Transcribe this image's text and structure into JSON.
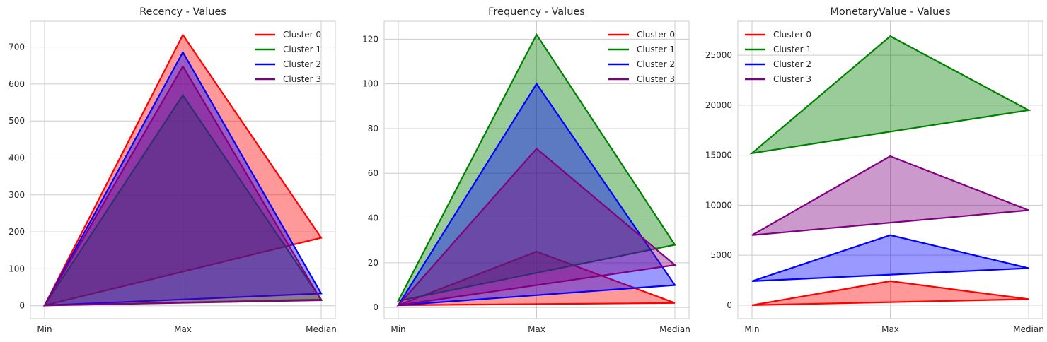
{
  "chart_data": [
    {
      "type": "area",
      "title": "Recency - Values",
      "categories": [
        "Min",
        "Max",
        "Median"
      ],
      "ylim": [
        -35,
        770
      ],
      "yticks": [
        "0",
        "100",
        "200",
        "300",
        "400",
        "500",
        "600",
        "700"
      ],
      "grid": true,
      "legend_position": "top-right",
      "series": [
        {
          "name": "Cluster 0",
          "color": "#ff0000",
          "values": [
            1,
            733,
            184
          ]
        },
        {
          "name": "Cluster 1",
          "color": "#008000",
          "values": [
            1,
            570,
            17
          ]
        },
        {
          "name": "Cluster 2",
          "color": "#0000ff",
          "values": [
            1,
            686,
            33
          ]
        },
        {
          "name": "Cluster 3",
          "color": "#800080",
          "values": [
            1,
            648,
            15
          ]
        }
      ]
    },
    {
      "type": "area",
      "title": "Frequency - Values",
      "categories": [
        "Min",
        "Max",
        "Median"
      ],
      "ylim": [
        -5,
        128
      ],
      "yticks": [
        "0",
        "20",
        "40",
        "60",
        "80",
        "100",
        "120"
      ],
      "grid": true,
      "legend_position": "top-right",
      "series": [
        {
          "name": "Cluster 0",
          "color": "#ff0000",
          "values": [
            1,
            25,
            2
          ]
        },
        {
          "name": "Cluster 1",
          "color": "#008000",
          "values": [
            3,
            122,
            28
          ]
        },
        {
          "name": "Cluster 2",
          "color": "#0000ff",
          "values": [
            1,
            100,
            10
          ]
        },
        {
          "name": "Cluster 3",
          "color": "#800080",
          "values": [
            1,
            71,
            19
          ]
        }
      ]
    },
    {
      "type": "area",
      "title": "MonetaryValue - Values",
      "categories": [
        "Min",
        "Max",
        "Median"
      ],
      "ylim": [
        -1350,
        28400
      ],
      "yticks": [
        "0",
        "5000",
        "10000",
        "15000",
        "20000",
        "25000"
      ],
      "grid": true,
      "legend_position": "top-left",
      "series": [
        {
          "name": "Cluster 0",
          "color": "#ff0000",
          "values": [
            0,
            2400,
            600
          ]
        },
        {
          "name": "Cluster 1",
          "color": "#008000",
          "values": [
            15200,
            26900,
            19500
          ]
        },
        {
          "name": "Cluster 2",
          "color": "#0000ff",
          "values": [
            2400,
            7000,
            3700
          ]
        },
        {
          "name": "Cluster 3",
          "color": "#800080",
          "values": [
            7000,
            14900,
            9500
          ]
        }
      ]
    }
  ]
}
